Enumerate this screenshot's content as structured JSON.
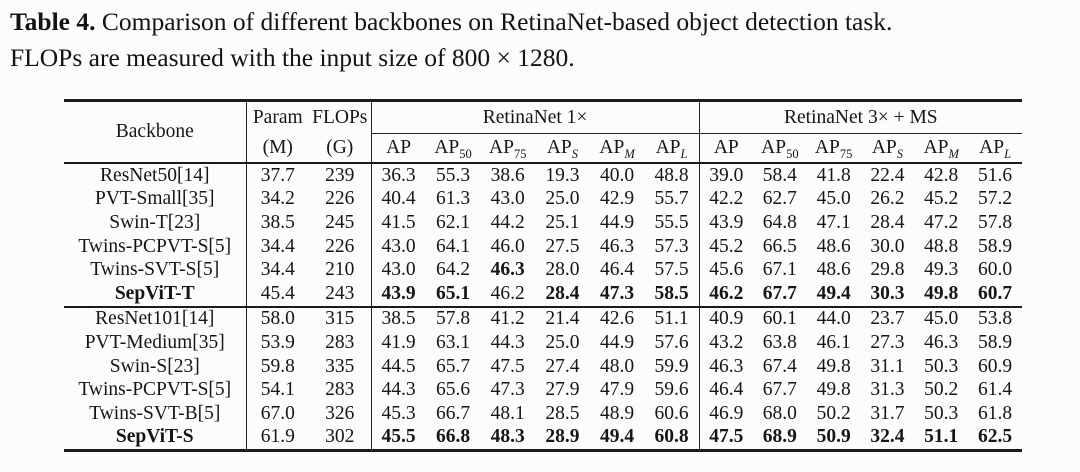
{
  "caption": {
    "label": "Table 4.",
    "line1": "Comparison of different backbones on RetinaNet-based object detection task.",
    "line2": "FLOPs are measured with the input size of 800 × 1280."
  },
  "table": {
    "header": {
      "backbone": "Backbone",
      "param": "Param",
      "param_unit": "(M)",
      "flops": "FLOPs",
      "flops_unit": "(G)",
      "group1": "RetinaNet 1×",
      "group2": "RetinaNet 3× + MS",
      "subcols": [
        {
          "base": "AP",
          "sub": "",
          "italic": false
        },
        {
          "base": "AP",
          "sub": "50",
          "italic": false
        },
        {
          "base": "AP",
          "sub": "75",
          "italic": false
        },
        {
          "base": "AP",
          "sub": "S",
          "italic": true
        },
        {
          "base": "AP",
          "sub": "M",
          "italic": true
        },
        {
          "base": "AP",
          "sub": "L",
          "italic": true
        }
      ]
    },
    "groups": [
      {
        "rows": [
          {
            "name": "ResNet50[14]",
            "bold_name": false,
            "param": "37.7",
            "flops": "239",
            "r1": [
              "36.3",
              "55.3",
              "38.6",
              "19.3",
              "40.0",
              "48.8"
            ],
            "b1": [],
            "r3": [
              "39.0",
              "58.4",
              "41.8",
              "22.4",
              "42.8",
              "51.6"
            ],
            "b3": []
          },
          {
            "name": "PVT-Small[35]",
            "bold_name": false,
            "param": "34.2",
            "flops": "226",
            "r1": [
              "40.4",
              "61.3",
              "43.0",
              "25.0",
              "42.9",
              "55.7"
            ],
            "b1": [],
            "r3": [
              "42.2",
              "62.7",
              "45.0",
              "26.2",
              "45.2",
              "57.2"
            ],
            "b3": []
          },
          {
            "name": "Swin-T[23]",
            "bold_name": false,
            "param": "38.5",
            "flops": "245",
            "r1": [
              "41.5",
              "62.1",
              "44.2",
              "25.1",
              "44.9",
              "55.5"
            ],
            "b1": [],
            "r3": [
              "43.9",
              "64.8",
              "47.1",
              "28.4",
              "47.2",
              "57.8"
            ],
            "b3": []
          },
          {
            "name": "Twins-PCPVT-S[5]",
            "bold_name": false,
            "param": "34.4",
            "flops": "226",
            "r1": [
              "43.0",
              "64.1",
              "46.0",
              "27.5",
              "46.3",
              "57.3"
            ],
            "b1": [],
            "r3": [
              "45.2",
              "66.5",
              "48.6",
              "30.0",
              "48.8",
              "58.9"
            ],
            "b3": []
          },
          {
            "name": "Twins-SVT-S[5]",
            "bold_name": false,
            "param": "34.4",
            "flops": "210",
            "r1": [
              "43.0",
              "64.2",
              "46.3",
              "28.0",
              "46.4",
              "57.5"
            ],
            "b1": [
              2
            ],
            "r3": [
              "45.6",
              "67.1",
              "48.6",
              "29.8",
              "49.3",
              "60.0"
            ],
            "b3": []
          },
          {
            "name": "SepViT-T",
            "bold_name": true,
            "param": "45.4",
            "flops": "243",
            "r1": [
              "43.9",
              "65.1",
              "46.2",
              "28.4",
              "47.3",
              "58.5"
            ],
            "b1": [
              0,
              1,
              3,
              4,
              5
            ],
            "r3": [
              "46.2",
              "67.7",
              "49.4",
              "30.3",
              "49.8",
              "60.7"
            ],
            "b3": [
              0,
              1,
              2,
              3,
              4,
              5
            ]
          }
        ]
      },
      {
        "rows": [
          {
            "name": "ResNet101[14]",
            "bold_name": false,
            "param": "58.0",
            "flops": "315",
            "r1": [
              "38.5",
              "57.8",
              "41.2",
              "21.4",
              "42.6",
              "51.1"
            ],
            "b1": [],
            "r3": [
              "40.9",
              "60.1",
              "44.0",
              "23.7",
              "45.0",
              "53.8"
            ],
            "b3": []
          },
          {
            "name": "PVT-Medium[35]",
            "bold_name": false,
            "param": "53.9",
            "flops": "283",
            "r1": [
              "41.9",
              "63.1",
              "44.3",
              "25.0",
              "44.9",
              "57.6"
            ],
            "b1": [],
            "r3": [
              "43.2",
              "63.8",
              "46.1",
              "27.3",
              "46.3",
              "58.9"
            ],
            "b3": []
          },
          {
            "name": "Swin-S[23]",
            "bold_name": false,
            "param": "59.8",
            "flops": "335",
            "r1": [
              "44.5",
              "65.7",
              "47.5",
              "27.4",
              "48.0",
              "59.9"
            ],
            "b1": [],
            "r3": [
              "46.3",
              "67.4",
              "49.8",
              "31.1",
              "50.3",
              "60.9"
            ],
            "b3": []
          },
          {
            "name": "Twins-PCPVT-S[5]",
            "bold_name": false,
            "param": "54.1",
            "flops": "283",
            "r1": [
              "44.3",
              "65.6",
              "47.3",
              "27.9",
              "47.9",
              "59.6"
            ],
            "b1": [],
            "r3": [
              "46.4",
              "67.7",
              "49.8",
              "31.3",
              "50.2",
              "61.4"
            ],
            "b3": []
          },
          {
            "name": "Twins-SVT-B[5]",
            "bold_name": false,
            "param": "67.0",
            "flops": "326",
            "r1": [
              "45.3",
              "66.7",
              "48.1",
              "28.5",
              "48.9",
              "60.6"
            ],
            "b1": [],
            "r3": [
              "46.9",
              "68.0",
              "50.2",
              "31.7",
              "50.3",
              "61.8"
            ],
            "b3": []
          },
          {
            "name": "SepViT-S",
            "bold_name": true,
            "param": "61.9",
            "flops": "302",
            "r1": [
              "45.5",
              "66.8",
              "48.3",
              "28.9",
              "49.4",
              "60.8"
            ],
            "b1": [
              0,
              1,
              2,
              3,
              4,
              5
            ],
            "r3": [
              "47.5",
              "68.9",
              "50.9",
              "32.4",
              "51.1",
              "62.5"
            ],
            "b3": [
              0,
              1,
              2,
              3,
              4,
              5
            ]
          }
        ]
      }
    ]
  }
}
